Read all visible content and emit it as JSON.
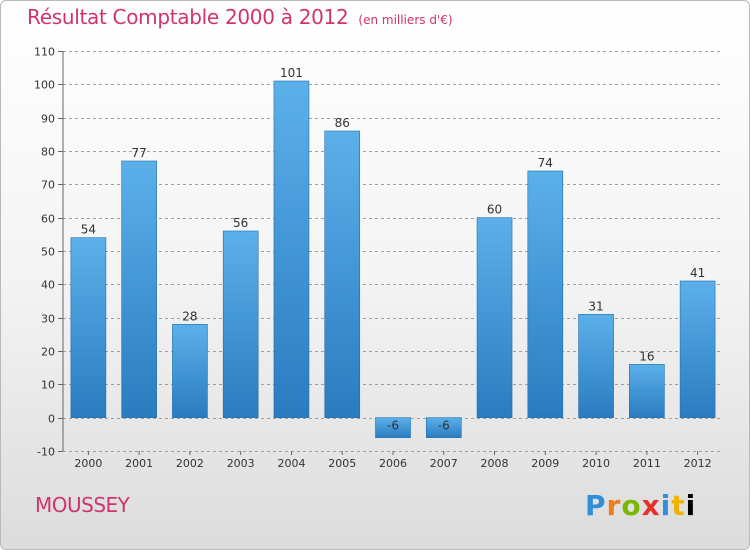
{
  "header": {
    "title": "Résultat Comptable 2000 à 2012",
    "subtitle": "(en milliers d'€)"
  },
  "town": "MOUSSEY",
  "brand": "Proxiti",
  "colors": {
    "title": "#d2336e",
    "bar_light": "#5aaee8",
    "bar_dark": "#2a7fc2",
    "grid": "#9a9a9a"
  },
  "chart_data": {
    "type": "bar",
    "title": "Résultat Comptable 2000 à 2012",
    "subtitle": "(en milliers d'€)",
    "xlabel": "",
    "ylabel": "",
    "categories": [
      "2000",
      "2001",
      "2002",
      "2003",
      "2004",
      "2005",
      "2006",
      "2007",
      "2008",
      "2009",
      "2010",
      "2011",
      "2012"
    ],
    "values": [
      54,
      77,
      28,
      56,
      101,
      86,
      -6,
      -6,
      60,
      74,
      31,
      16,
      41
    ],
    "ylim": [
      -10,
      110
    ],
    "yticks": [
      -10,
      0,
      10,
      20,
      30,
      40,
      50,
      60,
      70,
      80,
      90,
      100,
      110
    ],
    "grid": "horizontal dashed",
    "legend": "none"
  }
}
